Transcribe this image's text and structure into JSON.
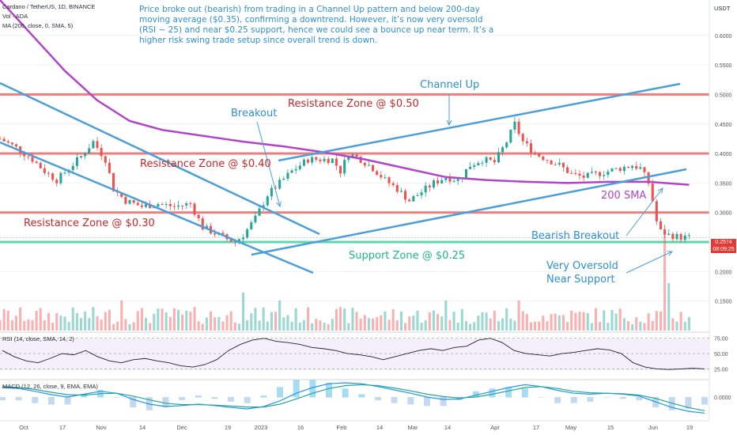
{
  "header": {
    "symbol_line": "Cardano / TetherUS, 1D, BINANCE",
    "vol_line": "Vol · ADA",
    "ma_line": "MA (200, close, 0, SMA, 5)",
    "currency": "USDT"
  },
  "note": "Price broke out (bearish) from trading in a Channel Up pattern and below 200-day moving average ($0.35), confirming a downtrend. However, it’s now very oversold (RSI ~ 25) and near $0.25 support, hence we could see a bounce up near term. It’s a higher risk swing trade setup since overall trend is down.",
  "annotations": {
    "resistance_050": "Resistance Zone @ $0.50",
    "resistance_040": "Resistance Zone @ $0.40",
    "resistance_030": "Resistance Zone @ $0.30",
    "support_025": "Support Zone @ $0.25",
    "channel_up": "Channel Up",
    "breakout": "Breakout",
    "sma200": "200 SMA",
    "bearish_breakout": "Bearish Breakout",
    "oversold_1": "Very Oversold",
    "oversold_2": "Near Support"
  },
  "price_tag": {
    "price": "0.2574",
    "countdown": "08:09:25"
  },
  "indicators": {
    "rsi_label": "RSI (14, close, SMA, 14, 2)",
    "macd_label": "MACD (12, 26, close, 9, EMA, EMA)"
  },
  "colors": {
    "up": "#26a69a",
    "down": "#ef5350",
    "zone_red": "#e57373",
    "zone_green": "#4fd1a5",
    "channel": "#4a9fd8",
    "sma": "#b045c8",
    "annotation_blue": "#2f8fd1"
  },
  "chart_data": {
    "type": "candlestick",
    "symbol": "ADA/USDT",
    "timeframe": "1D",
    "y_axis": {
      "ylim": [
        0.1,
        0.66
      ],
      "ticks": [
        "0.6000",
        "0.5500",
        "0.5000",
        "0.4500",
        "0.4000",
        "0.3500",
        "0.3000",
        "0.2500",
        "0.2000",
        "0.1500"
      ],
      "tick_values": [
        0.6,
        0.55,
        0.5,
        0.45,
        0.4,
        0.35,
        0.3,
        0.25,
        0.2,
        0.15
      ]
    },
    "x_axis": {
      "labels": [
        "Oct",
        "17",
        "Nov",
        "14",
        "Dec",
        "19",
        "2023",
        "16",
        "Feb",
        "14",
        "Mar",
        "14",
        "Apr",
        "17",
        "May",
        "15",
        "Jun",
        "19"
      ]
    },
    "price_close_path": [
      {
        "x": 0,
        "y": 0.425
      },
      {
        "x": 4,
        "y": 0.41
      },
      {
        "x": 8,
        "y": 0.39
      },
      {
        "x": 11,
        "y": 0.37
      },
      {
        "x": 14,
        "y": 0.355
      },
      {
        "x": 17,
        "y": 0.375
      },
      {
        "x": 20,
        "y": 0.395
      },
      {
        "x": 23,
        "y": 0.42
      },
      {
        "x": 26,
        "y": 0.39
      },
      {
        "x": 28,
        "y": 0.34
      },
      {
        "x": 31,
        "y": 0.32
      },
      {
        "x": 35,
        "y": 0.31
      },
      {
        "x": 39,
        "y": 0.315
      },
      {
        "x": 43,
        "y": 0.31
      },
      {
        "x": 47,
        "y": 0.315
      },
      {
        "x": 50,
        "y": 0.275
      },
      {
        "x": 53,
        "y": 0.265
      },
      {
        "x": 56,
        "y": 0.255
      },
      {
        "x": 58,
        "y": 0.25
      },
      {
        "x": 60,
        "y": 0.262
      },
      {
        "x": 63,
        "y": 0.29
      },
      {
        "x": 66,
        "y": 0.33
      },
      {
        "x": 69,
        "y": 0.35
      },
      {
        "x": 72,
        "y": 0.37
      },
      {
        "x": 76,
        "y": 0.39
      },
      {
        "x": 79,
        "y": 0.39
      },
      {
        "x": 82,
        "y": 0.39
      },
      {
        "x": 84,
        "y": 0.37
      },
      {
        "x": 86,
        "y": 0.4
      },
      {
        "x": 89,
        "y": 0.39
      },
      {
        "x": 92,
        "y": 0.375
      },
      {
        "x": 95,
        "y": 0.355
      },
      {
        "x": 98,
        "y": 0.34
      },
      {
        "x": 101,
        "y": 0.32
      },
      {
        "x": 104,
        "y": 0.335
      },
      {
        "x": 107,
        "y": 0.35
      },
      {
        "x": 110,
        "y": 0.36
      },
      {
        "x": 113,
        "y": 0.355
      },
      {
        "x": 116,
        "y": 0.38
      },
      {
        "x": 119,
        "y": 0.39
      },
      {
        "x": 122,
        "y": 0.385
      },
      {
        "x": 125,
        "y": 0.42
      },
      {
        "x": 127,
        "y": 0.45
      },
      {
        "x": 129,
        "y": 0.42
      },
      {
        "x": 132,
        "y": 0.4
      },
      {
        "x": 135,
        "y": 0.39
      },
      {
        "x": 138,
        "y": 0.38
      },
      {
        "x": 141,
        "y": 0.365
      },
      {
        "x": 144,
        "y": 0.36
      },
      {
        "x": 147,
        "y": 0.365
      },
      {
        "x": 150,
        "y": 0.37
      },
      {
        "x": 153,
        "y": 0.375
      },
      {
        "x": 156,
        "y": 0.38
      },
      {
        "x": 158,
        "y": 0.375
      },
      {
        "x": 160,
        "y": 0.35
      },
      {
        "x": 161,
        "y": 0.32
      },
      {
        "x": 162,
        "y": 0.285
      },
      {
        "x": 163,
        "y": 0.268
      },
      {
        "x": 165,
        "y": 0.262
      },
      {
        "x": 168,
        "y": 0.258
      },
      {
        "x": 170,
        "y": 0.2574
      }
    ],
    "sma200_path": [
      {
        "x": 0,
        "y": 0.66
      },
      {
        "x": 8,
        "y": 0.6
      },
      {
        "x": 16,
        "y": 0.54
      },
      {
        "x": 24,
        "y": 0.49
      },
      {
        "x": 32,
        "y": 0.455
      },
      {
        "x": 40,
        "y": 0.44
      },
      {
        "x": 50,
        "y": 0.43
      },
      {
        "x": 60,
        "y": 0.42
      },
      {
        "x": 70,
        "y": 0.412
      },
      {
        "x": 80,
        "y": 0.402
      },
      {
        "x": 90,
        "y": 0.39
      },
      {
        "x": 100,
        "y": 0.375
      },
      {
        "x": 110,
        "y": 0.36
      },
      {
        "x": 120,
        "y": 0.355
      },
      {
        "x": 130,
        "y": 0.352
      },
      {
        "x": 140,
        "y": 0.35
      },
      {
        "x": 150,
        "y": 0.352
      },
      {
        "x": 160,
        "y": 0.352
      },
      {
        "x": 170,
        "y": 0.347
      }
    ],
    "horizontal_levels": [
      0.5,
      0.4,
      0.3,
      0.25
    ],
    "last_price": 0.2574,
    "rsi": {
      "levels": [
        75,
        50,
        25
      ],
      "ticks": [
        "75.00",
        "50.00",
        "25.00"
      ],
      "values": [
        55,
        45,
        38,
        35,
        42,
        50,
        48,
        55,
        45,
        38,
        35,
        40,
        42,
        38,
        35,
        30,
        28,
        32,
        40,
        55,
        65,
        72,
        75,
        70,
        68,
        65,
        60,
        58,
        55,
        50,
        48,
        45,
        40,
        45,
        50,
        55,
        58,
        55,
        60,
        62,
        72,
        75,
        68,
        55,
        50,
        48,
        46,
        50,
        52,
        55,
        58,
        56,
        50,
        35,
        28,
        25,
        24,
        25,
        26,
        25
      ]
    },
    "macd": {
      "ticks": [
        "0.0000"
      ],
      "macd_line": [
        0.02,
        0.018,
        0.012,
        0.005,
        0.0,
        0.006,
        0.012,
        0.008,
        -0.005,
        -0.015,
        -0.02,
        -0.018,
        -0.015,
        -0.018,
        -0.022,
        -0.025,
        -0.02,
        -0.008,
        0.008,
        0.02,
        0.028,
        0.03,
        0.028,
        0.022,
        0.015,
        0.008,
        0.0,
        -0.005,
        -0.004,
        0.004,
        0.012,
        0.02,
        0.026,
        0.022,
        0.014,
        0.008,
        0.006,
        0.008,
        0.006,
        0.002,
        -0.01,
        -0.022,
        -0.03,
        -0.034
      ],
      "signal_line": [
        0.022,
        0.02,
        0.016,
        0.01,
        0.005,
        0.004,
        0.007,
        0.008,
        0.002,
        -0.006,
        -0.013,
        -0.016,
        -0.016,
        -0.017,
        -0.019,
        -0.021,
        -0.021,
        -0.015,
        -0.004,
        0.008,
        0.018,
        0.024,
        0.026,
        0.024,
        0.019,
        0.013,
        0.006,
        0.001,
        -0.002,
        0.0,
        0.006,
        0.013,
        0.02,
        0.022,
        0.018,
        0.012,
        0.009,
        0.008,
        0.007,
        0.004,
        -0.003,
        -0.013,
        -0.022,
        -0.029
      ]
    }
  }
}
